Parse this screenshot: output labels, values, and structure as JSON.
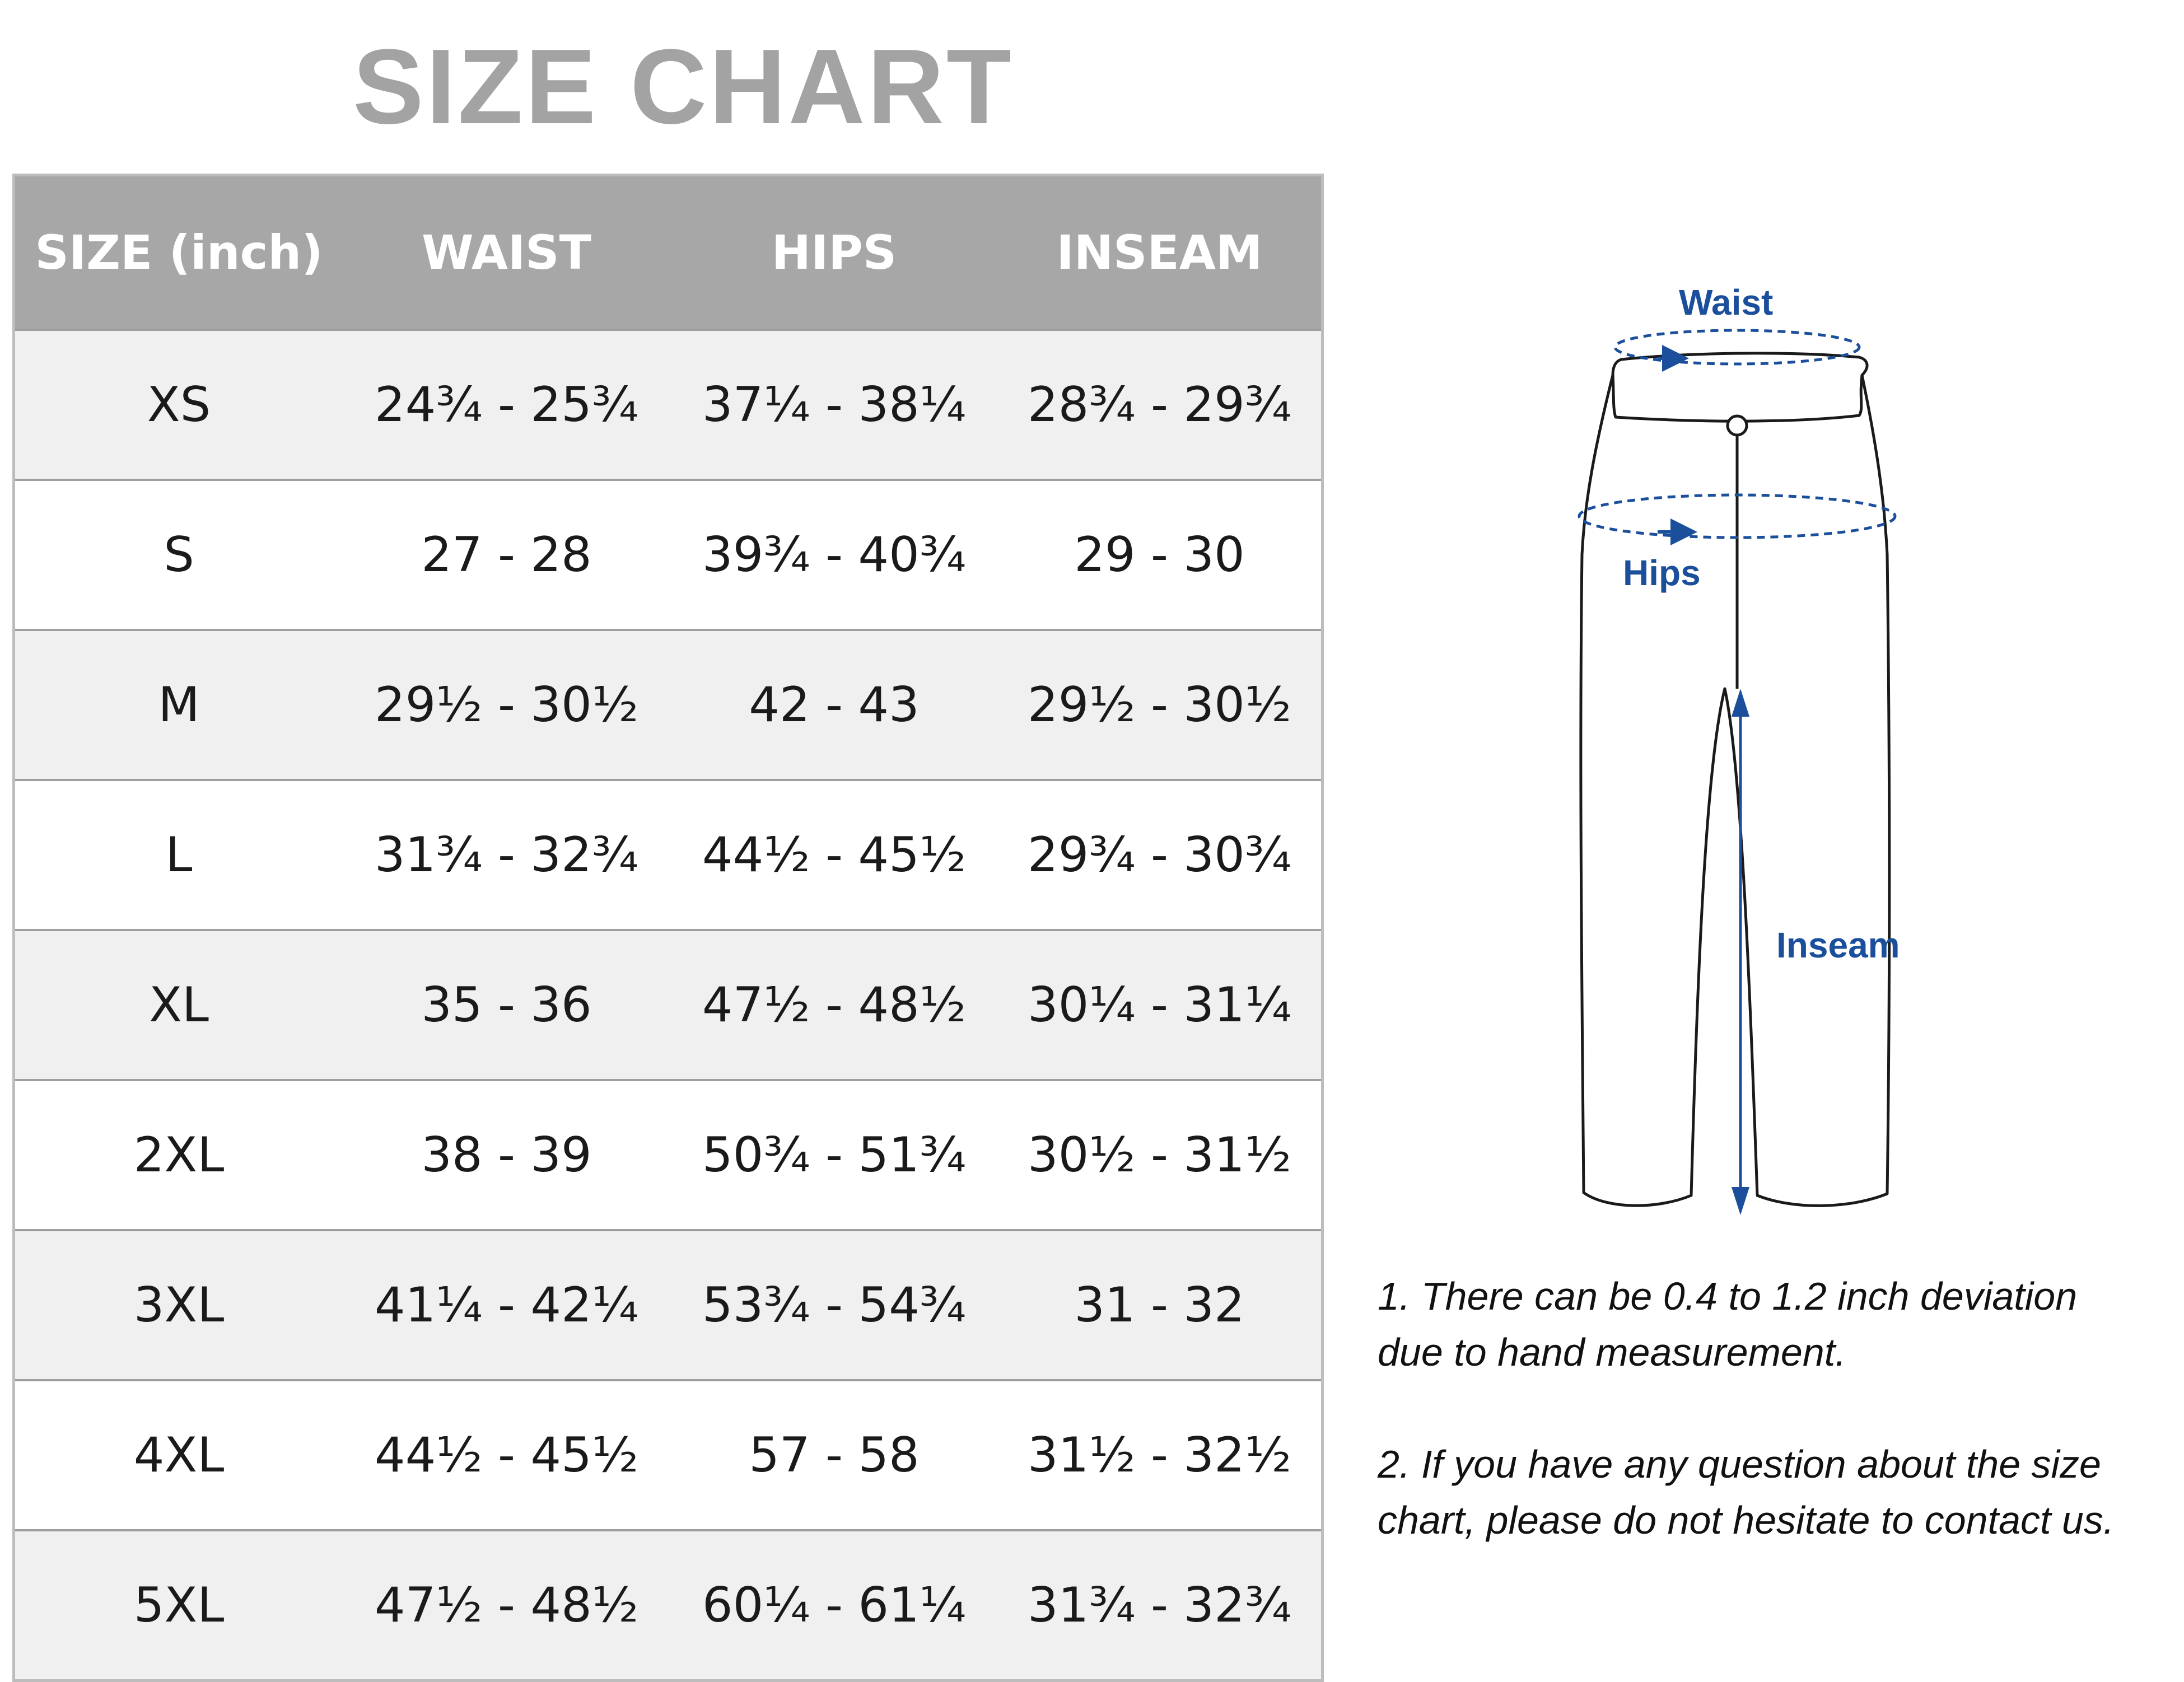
{
  "title": "SIZE CHART",
  "table": {
    "headers": [
      "SIZE (inch)",
      "WAIST",
      "HIPS",
      "INSEAM"
    ],
    "rows": [
      [
        "XS",
        "24¾ - 25¾",
        "37¼ - 38¼",
        "28¾ - 29¾"
      ],
      [
        "S",
        "27 - 28",
        "39¾ - 40¾",
        "29 - 30"
      ],
      [
        "M",
        "29½ - 30½",
        "42 - 43",
        "29½ - 30½"
      ],
      [
        "L",
        "31¾ - 32¾",
        "44½ - 45½",
        "29¾ - 30¾"
      ],
      [
        "XL",
        "35 - 36",
        "47½ - 48½",
        "30¼ - 31¼"
      ],
      [
        "2XL",
        "38 - 39",
        "50¾ - 51¾",
        "30½ - 31½"
      ],
      [
        "3XL",
        "41¼ - 42¼",
        "53¾ - 54¾",
        "31 - 32"
      ],
      [
        "4XL",
        "44½ - 45½",
        "57 - 58",
        "31½ - 32½"
      ],
      [
        "5XL",
        "47½ - 48½",
        "60¼ - 61¼",
        "31¾ - 32¾"
      ]
    ]
  },
  "diagram": {
    "waist_label": "Waist",
    "hips_label": "Hips",
    "inseam_label": "Inseam",
    "arrow_color": "#1b4f9c"
  },
  "notes": {
    "note1_line1": "1. There can be 0.4 to 1.2 inch deviation",
    "note1_line2": "due to hand measurement.",
    "note2_line1": "2. If you have any question about the size",
    "note2_line2": "chart, please do not hesitate to contact us."
  }
}
